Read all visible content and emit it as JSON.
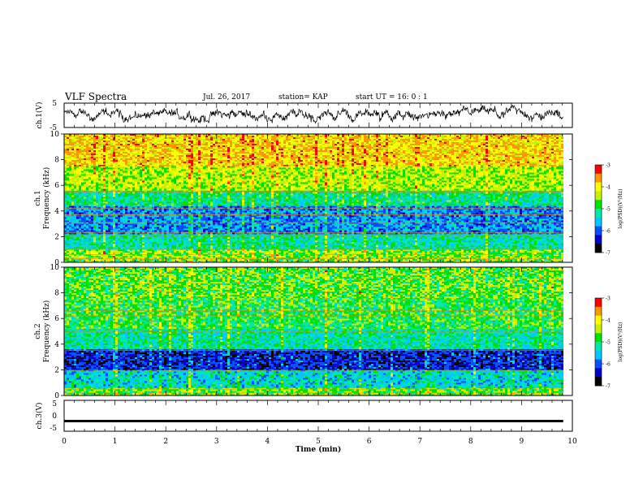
{
  "header": {
    "title": "VLF Spectra",
    "date": "Jul. 26, 2017",
    "station": "station= KAP",
    "start": "start UT =  16: 0  : 1"
  },
  "chart_data": [
    {
      "type": "line",
      "panel": "ch1-waveform",
      "ylabel": "ch.1(V)",
      "yticks": [
        "5",
        "-5"
      ],
      "ylim": [
        -5,
        5
      ],
      "xlim": [
        0,
        10
      ],
      "x_end": 9.82,
      "description": "noisy waveform roughly between -3 and 4 V, centered near 0"
    },
    {
      "type": "heatmap",
      "panel": "ch1-spectrogram",
      "ylabel": "Frequency (kHz)",
      "channel_label": "ch.1",
      "yticks": [
        "0",
        "2",
        "4",
        "6",
        "8",
        "10"
      ],
      "ylim": [
        0,
        10
      ],
      "xlim": [
        0,
        10
      ],
      "x_end": 9.82,
      "colorbar": {
        "label": "log(PSD)(V²/Hz)",
        "ticks": [
          "-3",
          "-4",
          "-5",
          "-6",
          "-7"
        ],
        "range": [
          -7,
          -3
        ],
        "colors": [
          "#000000",
          "#0000c8",
          "#0050ff",
          "#00c8ff",
          "#00e8b0",
          "#00e000",
          "#c8f000",
          "#ffff00",
          "#ff9800",
          "#ff0000"
        ]
      },
      "bands": [
        {
          "from": 0.0,
          "to": 1.0,
          "level": -4.6
        },
        {
          "from": 1.0,
          "to": 2.2,
          "level": -5.2
        },
        {
          "from": 2.2,
          "to": 4.4,
          "level": -5.8
        },
        {
          "from": 4.4,
          "to": 5.6,
          "level": -5.1
        },
        {
          "from": 5.6,
          "to": 7.5,
          "level": -4.4
        },
        {
          "from": 7.5,
          "to": 10.0,
          "level": -3.9
        }
      ],
      "tone_lines_khz": [
        0.3,
        0.6,
        1.0,
        2.1,
        2.3,
        3.1,
        3.7,
        4.2,
        4.9,
        5.5
      ]
    },
    {
      "type": "heatmap",
      "panel": "ch2-spectrogram",
      "ylabel": "Frequency (kHz)",
      "channel_label": "ch.2",
      "yticks": [
        "0",
        "2",
        "4",
        "6",
        "8",
        "10"
      ],
      "ylim": [
        0,
        10
      ],
      "xlim": [
        0,
        10
      ],
      "x_end": 9.82,
      "colorbar": {
        "label": "log(PSD)(V²/Hz)",
        "ticks": [
          "-3",
          "-4",
          "-5",
          "-6",
          "-7"
        ],
        "range": [
          -7,
          -3
        ],
        "colors": [
          "#000000",
          "#0000c8",
          "#0050ff",
          "#00c8ff",
          "#00e8b0",
          "#00e000",
          "#c8f000",
          "#ffff00",
          "#ff9800",
          "#ff0000"
        ]
      },
      "bands": [
        {
          "from": 0.0,
          "to": 0.6,
          "level": -4.7
        },
        {
          "from": 0.6,
          "to": 2.0,
          "level": -5.4
        },
        {
          "from": 2.0,
          "to": 3.6,
          "level": -6.3
        },
        {
          "from": 3.6,
          "to": 5.2,
          "level": -5.2
        },
        {
          "from": 5.2,
          "to": 7.5,
          "level": -4.9
        },
        {
          "from": 7.5,
          "to": 10.0,
          "level": -4.7
        }
      ],
      "tone_lines_khz": [
        0.2,
        0.5,
        1.9,
        3.5,
        4.4,
        5.0,
        6.2,
        6.6
      ]
    },
    {
      "type": "line",
      "panel": "ch3-waveform",
      "ylabel": "ch.3(V)",
      "yticks": [
        "5",
        "0",
        "-5"
      ],
      "ylim": [
        -5,
        5
      ],
      "xlim": [
        0,
        10
      ],
      "x_end": 9.82,
      "level": -1.7,
      "description": "flat, nearly constant signal"
    }
  ],
  "xaxis": {
    "label": "Time (min)",
    "ticks": [
      "0",
      "1",
      "2",
      "3",
      "4",
      "5",
      "6",
      "7",
      "8",
      "9",
      "10"
    ]
  },
  "colors": {
    "frame": "#000000",
    "waveform": "#000000"
  }
}
